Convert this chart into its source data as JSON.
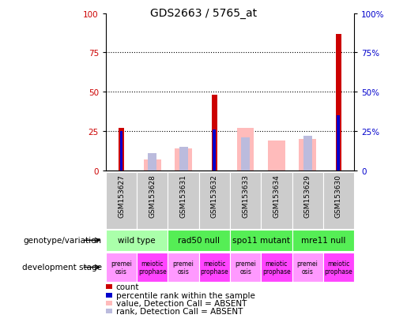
{
  "title": "GDS2663 / 5765_at",
  "samples": [
    "GSM153627",
    "GSM153628",
    "GSM153631",
    "GSM153632",
    "GSM153633",
    "GSM153634",
    "GSM153629",
    "GSM153630"
  ],
  "count_values": [
    27,
    0,
    0,
    48,
    0,
    0,
    0,
    87
  ],
  "percentile_rank": [
    25,
    0,
    0,
    26,
    0,
    0,
    0,
    35
  ],
  "absent_value": [
    0,
    7,
    14,
    0,
    27,
    19,
    20,
    0
  ],
  "absent_rank": [
    0,
    11,
    15,
    0,
    21,
    0,
    22,
    0
  ],
  "ylim": [
    0,
    100
  ],
  "yticks": [
    0,
    25,
    50,
    75,
    100
  ],
  "grid_values": [
    25,
    50,
    75
  ],
  "count_color": "#cc0000",
  "percentile_color": "#0000cc",
  "absent_value_color": "#ffbbbb",
  "absent_rank_color": "#bbbbdd",
  "sample_box_color": "#cccccc",
  "genotype_groups": [
    {
      "label": "wild type",
      "start": 0,
      "end": 2,
      "color": "#aaffaa"
    },
    {
      "label": "rad50 null",
      "start": 2,
      "end": 4,
      "color": "#55ee55"
    },
    {
      "label": "spo11 mutant",
      "start": 4,
      "end": 6,
      "color": "#55ee55"
    },
    {
      "label": "mre11 null",
      "start": 6,
      "end": 8,
      "color": "#55ee55"
    }
  ],
  "dev_labels": [
    "premei\nosis",
    "meiotic\nprophase",
    "premei\nosis",
    "meiotic\nprophase",
    "premei\nosis",
    "meiotic\nprophase",
    "premei\nosis",
    "meiotic\nprophase"
  ],
  "dev_colors": [
    "#ff99ff",
    "#ff44ff",
    "#ff99ff",
    "#ff44ff",
    "#ff99ff",
    "#ff44ff",
    "#ff99ff",
    "#ff44ff"
  ],
  "red_color": "#cc0000",
  "blue_color": "#0000cc",
  "legend_items": [
    {
      "color": "#cc0000",
      "label": "count"
    },
    {
      "color": "#0000cc",
      "label": "percentile rank within the sample"
    },
    {
      "color": "#ffbbbb",
      "label": "value, Detection Call = ABSENT"
    },
    {
      "color": "#bbbbdd",
      "label": "rank, Detection Call = ABSENT"
    }
  ]
}
